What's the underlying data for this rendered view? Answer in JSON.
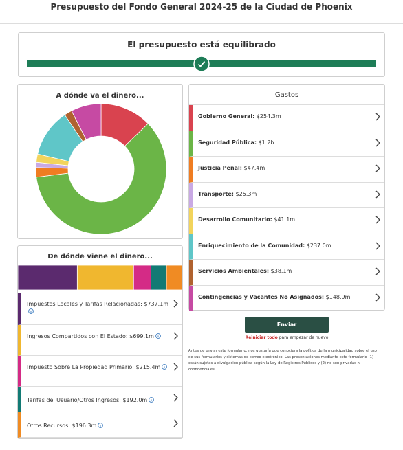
{
  "header": {
    "title": "Presupuesto del Fondo General 2024-25 de la Ciudad de Phoenix"
  },
  "status": {
    "text": "El presupuesto está equilibrado"
  },
  "spending": {
    "title": "A dónde va el dinero...",
    "list_title": "Gastos",
    "items": [
      {
        "name": "Gobierno General:",
        "amount": 254.3,
        "amount_label": "$254.3m",
        "color": "#d9434f"
      },
      {
        "name": "Seguridad Pública:",
        "amount": 1200,
        "amount_label": "$1.2b",
        "color": "#6bb547"
      },
      {
        "name": "Justicia Penal:",
        "amount": 47.4,
        "amount_label": "$47.4m",
        "color": "#ef7d22"
      },
      {
        "name": "Transporte:",
        "amount": 25.3,
        "amount_label": "$25.3m",
        "color": "#c9a9e4"
      },
      {
        "name": "Desarrollo Comunitario:",
        "amount": 41.1,
        "amount_label": "$41.1m",
        "color": "#f2d45c"
      },
      {
        "name": "Enriquecimiento de la Comunidad:",
        "amount": 237.0,
        "amount_label": "$237.0m",
        "color": "#5fc6c8"
      },
      {
        "name": "Servicios Ambientales:",
        "amount": 38.1,
        "amount_label": "$38.1m",
        "color": "#b0622f"
      },
      {
        "name": "Contingencias y Vacantes No Asignados:",
        "amount": 148.9,
        "amount_label": "$148.9m",
        "color": "#c64aa3"
      }
    ]
  },
  "revenue": {
    "title": "De dónde viene el dinero...",
    "items": [
      {
        "name": "Impuestos Locales y Tarifas Relacionadas:",
        "amount": 737.1,
        "amount_label": "$737.1m",
        "color": "#5b2a6e"
      },
      {
        "name": "Ingresos Compartidos con El Estado:",
        "amount": 699.1,
        "amount_label": "$699.1m",
        "color": "#f0b72f"
      },
      {
        "name": "Impuesto Sobre La Propiedad Primario:",
        "amount": 215.4,
        "amount_label": "$215.4m",
        "color": "#d42b86"
      },
      {
        "name": "Tarifas del Usuario/Otros Ingresos:",
        "amount": 192.0,
        "amount_label": "$192.0m",
        "color": "#127a74"
      },
      {
        "name": "Otros Recursos:",
        "amount": 196.3,
        "amount_label": "$196.3m",
        "color": "#f08b23"
      }
    ]
  },
  "submit": {
    "button": "Enviar",
    "reset_link": "Reiniciar todo",
    "reset_text": "para empezar de nuevo"
  },
  "disclaimer": "Antes de enviar este formulario, nos gustaría que conociera la política de la municipalidad sobre el uso de sus formularios y sistemas de correo electrónico. Las presentaciones mediante este formulario (1) están sujetas a divulgación pública según la Ley de Registros Públicos y (2) no son privadas ni confidenciales."
}
